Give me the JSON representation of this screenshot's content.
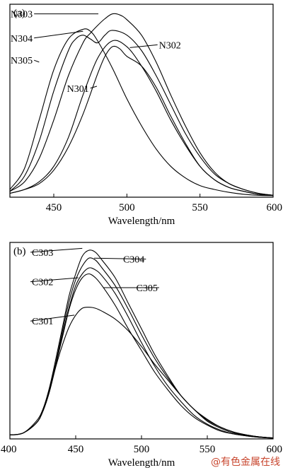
{
  "watermark": "@有色金属在线",
  "chart_data": [
    {
      "type": "line",
      "panel_label": "(a)",
      "xlabel": "Wavelength/nm",
      "ylabel": "",
      "xlim": [
        420,
        600
      ],
      "ylim": [
        0,
        100
      ],
      "x_ticks": [
        450,
        500,
        550,
        600
      ],
      "grid": false,
      "legend": "none",
      "series": [
        {
          "name": "N301",
          "label_pos": [
            459,
            56.5
          ],
          "anchor": [
            479.5,
            57.5
          ],
          "label_side": "right",
          "x": [
            420,
            430,
            440,
            450,
            460,
            470,
            480,
            485,
            490,
            495,
            500,
            510,
            520,
            530,
            540,
            550,
            560,
            570,
            580,
            590,
            600
          ],
          "y": [
            2,
            4,
            7,
            14,
            26,
            43,
            64,
            73,
            78,
            77,
            73,
            68,
            57,
            42,
            28,
            16,
            9,
            5,
            3,
            1.5,
            1
          ]
        },
        {
          "name": "N302",
          "label_pos": [
            537,
            79
          ],
          "anchor": [
            502,
            77.5
          ],
          "label_side": "left",
          "x": [
            420,
            430,
            440,
            450,
            460,
            470,
            480,
            490,
            500,
            510,
            520,
            530,
            540,
            550,
            560,
            570,
            580,
            590,
            600
          ],
          "y": [
            2,
            4,
            8,
            16,
            31,
            53,
            72,
            81,
            78,
            68,
            55,
            40,
            27,
            16,
            9,
            5,
            3,
            1.5,
            1
          ]
        },
        {
          "name": "N303",
          "label_pos": [
            420.5,
            95
          ],
          "anchor": [
            480.5,
            95
          ],
          "label_side": "right",
          "x": [
            420,
            430,
            440,
            450,
            460,
            470,
            475,
            480,
            485,
            490,
            495,
            500,
            510,
            520,
            530,
            540,
            550,
            560,
            570,
            580,
            590,
            600
          ],
          "y": [
            3,
            8,
            20,
            40,
            63,
            80,
            85,
            89,
            92.5,
            95,
            94.5,
            92,
            84,
            70,
            53,
            37,
            23,
            13,
            7,
            4,
            2,
            1
          ]
        },
        {
          "name": "N304",
          "label_pos": [
            420.5,
            82.5
          ],
          "anchor": [
            470,
            86
          ],
          "label_side": "right",
          "x": [
            420,
            430,
            440,
            450,
            460,
            465,
            470,
            475,
            480,
            485,
            490,
            500,
            510,
            520,
            530,
            540,
            550,
            560,
            570,
            580,
            590,
            600
          ],
          "y": [
            3,
            11,
            29,
            55,
            76,
            82,
            84,
            82,
            80,
            84,
            86.5,
            84,
            76,
            63,
            48,
            33,
            21,
            12,
            7,
            4,
            2,
            1
          ]
        },
        {
          "name": "N305",
          "label_pos": [
            420.5,
            71
          ],
          "anchor": [
            440,
            70
          ],
          "label_side": "right",
          "x": [
            420,
            430,
            440,
            450,
            460,
            470,
            475,
            480,
            490,
            500,
            510,
            520,
            530,
            540,
            550,
            560,
            570,
            580,
            590,
            600
          ],
          "y": [
            4,
            15,
            40,
            66,
            82,
            87,
            86,
            81,
            67,
            51,
            37,
            25,
            16,
            10,
            6,
            4,
            2.5,
            1.5,
            1,
            0.8
          ]
        }
      ]
    },
    {
      "type": "line",
      "panel_label": "(b)",
      "xlabel": "Wavelength/nm",
      "ylabel": "",
      "xlim": [
        400,
        600
      ],
      "ylim": [
        0,
        100
      ],
      "x_ticks": [
        400,
        450,
        500,
        550,
        600
      ],
      "grid": false,
      "legend": "none",
      "series": [
        {
          "name": "C301",
          "label_pos": [
            433,
            60
          ],
          "anchor": [
            449,
            63
          ],
          "label_side": "left",
          "x": [
            400,
            410,
            420,
            425,
            430,
            435,
            440,
            445,
            450,
            455,
            460,
            465,
            470,
            480,
            490,
            500,
            510,
            520,
            530,
            540,
            550,
            560,
            570,
            580,
            590,
            600
          ],
          "y": [
            2,
            3,
            8,
            14,
            24,
            37,
            48,
            57,
            63,
            66.5,
            67,
            66.5,
            65,
            61,
            55,
            47,
            38,
            30,
            22,
            15,
            10,
            6,
            3.5,
            2,
            1,
            0.5
          ]
        },
        {
          "name": "C302",
          "label_pos": [
            433,
            80
          ],
          "anchor": [
            452,
            82
          ],
          "label_side": "left",
          "x": [
            400,
            410,
            420,
            425,
            430,
            435,
            440,
            445,
            450,
            455,
            460,
            465,
            470,
            480,
            490,
            500,
            510,
            520,
            530,
            540,
            550,
            560,
            570,
            580,
            590,
            600
          ],
          "y": [
            2,
            3,
            8,
            14,
            24,
            38,
            52,
            66,
            76,
            82,
            84,
            82,
            78,
            68,
            56,
            45,
            34,
            25,
            17,
            11,
            7,
            4,
            2.5,
            1.5,
            0.8,
            0.4
          ]
        },
        {
          "name": "C303",
          "label_pos": [
            433,
            95
          ],
          "anchor": [
            455,
            97
          ],
          "label_side": "left",
          "x": [
            400,
            410,
            420,
            425,
            430,
            435,
            440,
            445,
            450,
            455,
            460,
            465,
            470,
            480,
            490,
            500,
            510,
            520,
            530,
            540,
            550,
            560,
            570,
            580,
            590,
            600
          ],
          "y": [
            2,
            3,
            9,
            15,
            26,
            41,
            57,
            73,
            84,
            93,
            96,
            95,
            91,
            82,
            69,
            56,
            43,
            32,
            22,
            15,
            9,
            5.5,
            3,
            1.8,
            1,
            0.5
          ]
        },
        {
          "name": "C304",
          "label_pos": [
            486,
            91.5
          ],
          "anchor": [
            464,
            92
          ],
          "label_side": "right",
          "x": [
            400,
            410,
            420,
            425,
            430,
            435,
            440,
            445,
            450,
            455,
            460,
            465,
            470,
            480,
            490,
            500,
            510,
            520,
            530,
            540,
            550,
            560,
            570,
            580,
            590,
            600
          ],
          "y": [
            2,
            3,
            8,
            14,
            25,
            39,
            55,
            70,
            81,
            88,
            92,
            91,
            87,
            78,
            66,
            53,
            41,
            31,
            22,
            15,
            9.5,
            6,
            3.5,
            2,
            1,
            0.5
          ]
        },
        {
          "name": "C305",
          "label_pos": [
            496,
            77
          ],
          "anchor": [
            471,
            77
          ],
          "label_side": "right",
          "x": [
            400,
            410,
            420,
            425,
            430,
            435,
            440,
            445,
            450,
            455,
            460,
            465,
            470,
            480,
            490,
            500,
            510,
            520,
            530,
            540,
            550,
            560,
            570,
            580,
            590,
            600
          ],
          "y": [
            2,
            3,
            8,
            14,
            24,
            38,
            53,
            67,
            78,
            84,
            87,
            86,
            83,
            74,
            62,
            49,
            37,
            27,
            19,
            12,
            7.5,
            4.5,
            2.5,
            1.5,
            0.8,
            0.4
          ]
        }
      ]
    }
  ]
}
